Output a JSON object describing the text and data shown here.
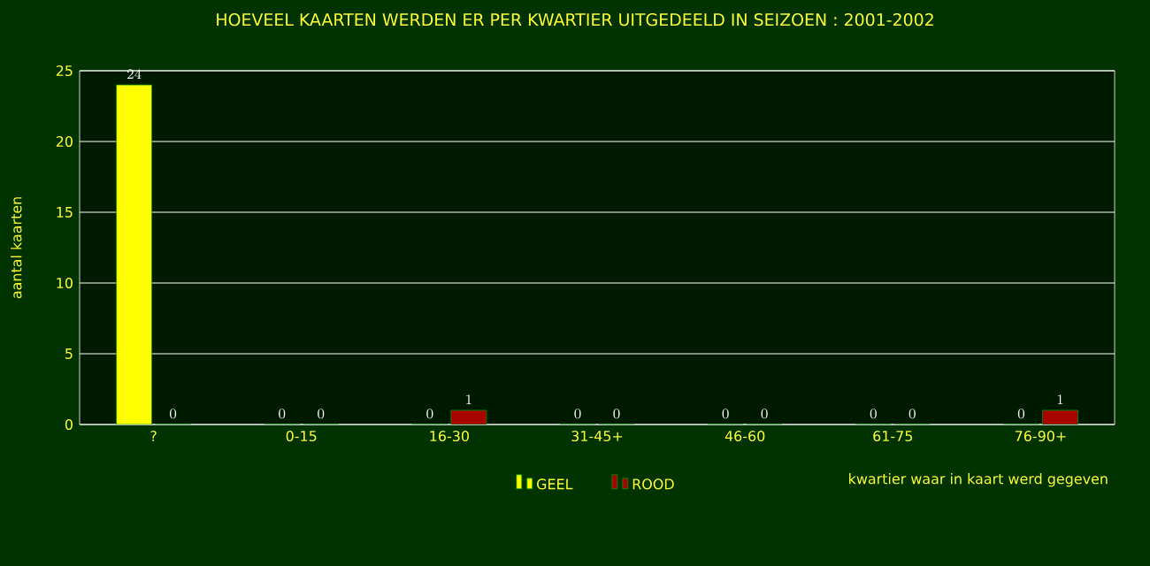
{
  "chart_data": {
    "type": "bar",
    "title": "HOEVEEL KAARTEN WERDEN ER PER KWARTIER UITGEDEELD IN SEIZOEN : 2001-2002",
    "xlabel": "kwartier waar in kaart werd gegeven",
    "ylabel": "aantal kaarten",
    "categories": [
      "?",
      "0-15",
      "16-30",
      "31-45+",
      "46-60",
      "61-75",
      "76-90+"
    ],
    "series": [
      {
        "name": "GEEL",
        "color": "#ffff00",
        "values": [
          24,
          0,
          0,
          0,
          0,
          0,
          0
        ]
      },
      {
        "name": "ROOD",
        "color": "#aa0000",
        "values": [
          0,
          0,
          1,
          0,
          0,
          0,
          1
        ]
      }
    ],
    "ylim": [
      0,
      25
    ],
    "yticks": [
      0,
      5,
      10,
      15,
      20,
      25
    ],
    "grid": "y",
    "legend": "bottom",
    "data_labels": true
  }
}
